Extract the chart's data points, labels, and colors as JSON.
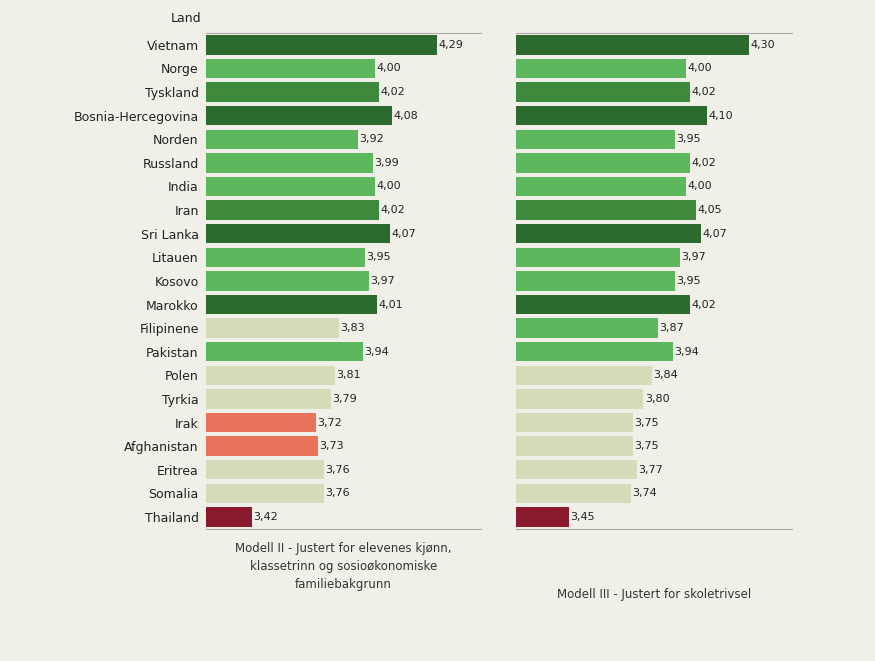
{
  "countries": [
    "Vietnam",
    "Norge",
    "Tyskland",
    "Bosnia-Hercegovina",
    "Norden",
    "Russland",
    "India",
    "Iran",
    "Sri Lanka",
    "Litauen",
    "Kosovo",
    "Marokko",
    "Filipinene",
    "Pakistan",
    "Polen",
    "Tyrkia",
    "Irak",
    "Afghanistan",
    "Eritrea",
    "Somalia",
    "Thailand"
  ],
  "model2_values": [
    4.29,
    4.0,
    4.02,
    4.08,
    3.92,
    3.99,
    4.0,
    4.02,
    4.07,
    3.95,
    3.97,
    4.01,
    3.83,
    3.94,
    3.81,
    3.79,
    3.72,
    3.73,
    3.76,
    3.76,
    3.42
  ],
  "model3_values": [
    4.3,
    4.0,
    4.02,
    4.1,
    3.95,
    4.02,
    4.0,
    4.05,
    4.07,
    3.97,
    3.95,
    4.02,
    3.87,
    3.94,
    3.84,
    3.8,
    3.75,
    3.75,
    3.77,
    3.74,
    3.45
  ],
  "model2_colors": [
    "#2d6a2d",
    "#5db85d",
    "#3d8a3d",
    "#2d6a2d",
    "#5db85d",
    "#5db85d",
    "#5db85d",
    "#3d8a3d",
    "#2d6a2d",
    "#5db85d",
    "#5db85d",
    "#2d6a2d",
    "#d6dbba",
    "#5db85d",
    "#d6dbba",
    "#d6dbba",
    "#e8735a",
    "#e8735a",
    "#d6dbba",
    "#d6dbba",
    "#8b1a2e"
  ],
  "model3_colors": [
    "#2d6a2d",
    "#5db85d",
    "#3d8a3d",
    "#2d6a2d",
    "#5db85d",
    "#5db85d",
    "#5db85d",
    "#3d8a3d",
    "#2d6a2d",
    "#5db85d",
    "#5db85d",
    "#2d6a2d",
    "#5db85d",
    "#5db85d",
    "#d6dbba",
    "#d6dbba",
    "#d6dbba",
    "#d6dbba",
    "#d6dbba",
    "#d6dbba",
    "#8b1a2e"
  ],
  "label_land": "Land",
  "label_model2": "Modell II - Justert for elevenes kjønn,\nklassetrinn og sosioøkonomiske\nfamiliebakgrunn",
  "label_model3": "Modell III - Justert for skoletrivsel",
  "xlim": [
    3.2,
    4.5
  ],
  "background_color": "#f0f0e8",
  "bar_height": 0.82,
  "value_fontsize": 8.0,
  "label_fontsize": 9.0
}
